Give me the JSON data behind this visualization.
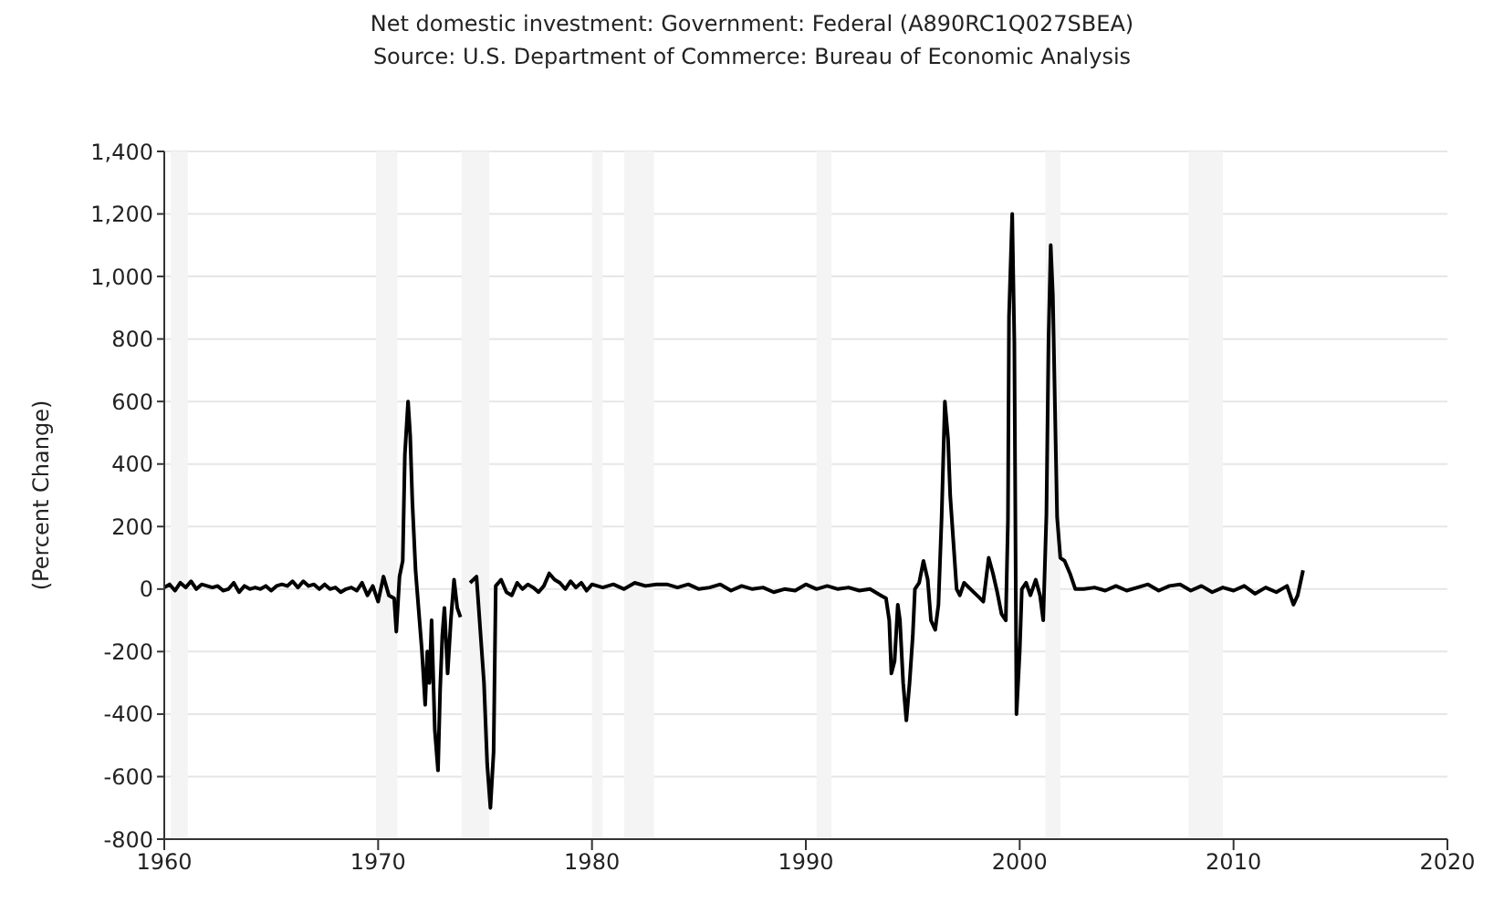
{
  "chart_data": {
    "type": "line",
    "title": "Net domestic investment: Government: Federal (A890RC1Q027SBEA)",
    "subtitle": "Source: U.S. Department of Commerce: Bureau of Economic Analysis",
    "ylabel": "(Percent Change)",
    "x": [
      1960.0,
      1960.25,
      1960.5,
      1960.75,
      1961.0,
      1961.25,
      1961.5,
      1961.75,
      1962.0,
      1962.25,
      1962.5,
      1962.75,
      1963.0,
      1963.25,
      1963.5,
      1963.75,
      1964.0,
      1964.25,
      1964.5,
      1964.75,
      1965.0,
      1965.25,
      1965.5,
      1965.75,
      1966.0,
      1966.25,
      1966.5,
      1966.75,
      1967.0,
      1967.25,
      1967.5,
      1967.75,
      1968.0,
      1968.25,
      1968.5,
      1968.75,
      1969.0,
      1969.25,
      1969.5,
      1969.75,
      1970.0,
      1970.25,
      1970.5,
      1970.75,
      1970.85,
      1971.0,
      1971.15,
      1971.25,
      1971.4,
      1971.5,
      1971.6,
      1971.75,
      1971.9,
      1972.05,
      1972.2,
      1972.3,
      1972.4,
      1972.5,
      1972.65,
      1972.8,
      1972.9,
      1973.0,
      1973.1,
      1973.25,
      1973.4,
      1973.55,
      1973.7,
      1973.85,
      1974.1,
      1974.3,
      1974.6,
      1974.95,
      1975.1,
      1975.25,
      1975.4,
      1975.5,
      1975.75,
      1976.0,
      1976.25,
      1976.5,
      1976.75,
      1977.0,
      1977.25,
      1977.5,
      1977.75,
      1978.0,
      1978.25,
      1978.5,
      1978.75,
      1979.0,
      1979.25,
      1979.5,
      1979.75,
      1980.0,
      1980.5,
      1981.0,
      1981.5,
      1982.0,
      1982.5,
      1983.0,
      1983.5,
      1984.0,
      1984.5,
      1985.0,
      1985.5,
      1986.0,
      1986.5,
      1987.0,
      1987.5,
      1988.0,
      1988.5,
      1989.0,
      1989.5,
      1990.0,
      1990.5,
      1991.0,
      1991.5,
      1992.0,
      1992.5,
      1993.0,
      1993.5,
      1993.75,
      1993.9,
      1994.0,
      1994.15,
      1994.3,
      1994.4,
      1994.55,
      1994.7,
      1994.85,
      1995.0,
      1995.1,
      1995.3,
      1995.5,
      1995.7,
      1995.85,
      1996.05,
      1996.2,
      1996.35,
      1996.5,
      1996.65,
      1996.75,
      1996.9,
      1997.05,
      1997.2,
      1997.4,
      1997.7,
      1998.0,
      1998.3,
      1998.55,
      1998.75,
      1998.95,
      1999.15,
      1999.35,
      1999.45,
      1999.5,
      1999.65,
      1999.75,
      1999.85,
      2000.0,
      2000.1,
      2000.3,
      2000.5,
      2000.75,
      2000.95,
      2001.1,
      2001.25,
      2001.35,
      2001.45,
      2001.55,
      2001.65,
      2001.75,
      2001.9,
      2002.1,
      2002.35,
      2002.6,
      2003.0,
      2003.5,
      2004.0,
      2004.5,
      2005.0,
      2005.5,
      2006.0,
      2006.5,
      2007.0,
      2007.5,
      2008.0,
      2008.5,
      2009.0,
      2009.5,
      2010.0,
      2010.5,
      2011.0,
      2011.5,
      2012.0,
      2012.5,
      2012.8,
      2013.0,
      2013.25
    ],
    "series": [
      {
        "color": "#000000",
        "values": [
          5,
          15,
          -5,
          20,
          5,
          25,
          0,
          15,
          10,
          5,
          10,
          -5,
          0,
          20,
          -10,
          10,
          0,
          5,
          0,
          10,
          -5,
          10,
          15,
          10,
          25,
          5,
          25,
          10,
          15,
          0,
          15,
          0,
          5,
          -10,
          0,
          5,
          -5,
          20,
          -20,
          10,
          -40,
          40,
          -20,
          -30,
          -136,
          40,
          90,
          430,
          600,
          490,
          280,
          60,
          -70,
          -200,
          -370,
          -200,
          -300,
          -100,
          -450,
          -580,
          -320,
          -150,
          -60,
          -270,
          -100,
          30,
          -60,
          -90,
          null,
          20,
          40,
          -300,
          -560,
          -700,
          -520,
          10,
          30,
          -10,
          -20,
          20,
          0,
          15,
          5,
          -10,
          10,
          50,
          30,
          20,
          0,
          25,
          5,
          20,
          -5,
          15,
          5,
          15,
          0,
          20,
          10,
          15,
          15,
          5,
          15,
          0,
          5,
          15,
          -5,
          10,
          0,
          5,
          -10,
          0,
          -5,
          15,
          0,
          10,
          0,
          5,
          -5,
          0,
          -20,
          -30,
          -100,
          -270,
          -230,
          -50,
          -100,
          -300,
          -420,
          -300,
          -150,
          0,
          20,
          90,
          30,
          -100,
          -130,
          -50,
          230,
          600,
          480,
          300,
          150,
          0,
          -20,
          20,
          0,
          -20,
          -40,
          100,
          50,
          -10,
          -80,
          -100,
          220,
          870,
          1200,
          790,
          -400,
          -200,
          0,
          20,
          -20,
          30,
          -20,
          -100,
          240,
          800,
          1100,
          940,
          580,
          230,
          100,
          90,
          50,
          0,
          0,
          5,
          -5,
          10,
          -5,
          5,
          15,
          -5,
          10,
          15,
          -5,
          10,
          -10,
          5,
          -5,
          10,
          -15,
          5,
          -10,
          10,
          -50,
          -20,
          60
        ]
      }
    ],
    "xlim": [
      1960,
      2020
    ],
    "xticks": [
      1960,
      1970,
      1980,
      1990,
      2000,
      2010,
      2020
    ],
    "ylim": [
      -800,
      1400
    ],
    "yticks": [
      -800,
      -600,
      -400,
      -200,
      0,
      200,
      400,
      600,
      800,
      {
        "value": 1000,
        "label": "1,000"
      },
      {
        "value": 1200,
        "label": "1,200"
      },
      {
        "value": 1400,
        "label": "1,400"
      }
    ],
    "grid": "y",
    "legend": false,
    "marker": "none",
    "line_style": "solid",
    "bands": [
      {
        "axis": "x",
        "from": 1960.3,
        "to": 1961.1,
        "color": "#f4f4f4"
      },
      {
        "axis": "x",
        "from": 1969.9,
        "to": 1970.9,
        "color": "#f4f4f4"
      },
      {
        "axis": "x",
        "from": 1973.9,
        "to": 1975.2,
        "color": "#f4f4f4"
      },
      {
        "axis": "x",
        "from": 1980.0,
        "to": 1980.5,
        "color": "#f4f4f4"
      },
      {
        "axis": "x",
        "from": 1981.5,
        "to": 1982.9,
        "color": "#f4f4f4"
      },
      {
        "axis": "x",
        "from": 1990.5,
        "to": 1991.2,
        "color": "#f4f4f4"
      },
      {
        "axis": "x",
        "from": 2001.2,
        "to": 2001.9,
        "color": "#f4f4f4"
      },
      {
        "axis": "x",
        "from": 2007.9,
        "to": 2009.5,
        "color": "#f4f4f4"
      }
    ]
  }
}
